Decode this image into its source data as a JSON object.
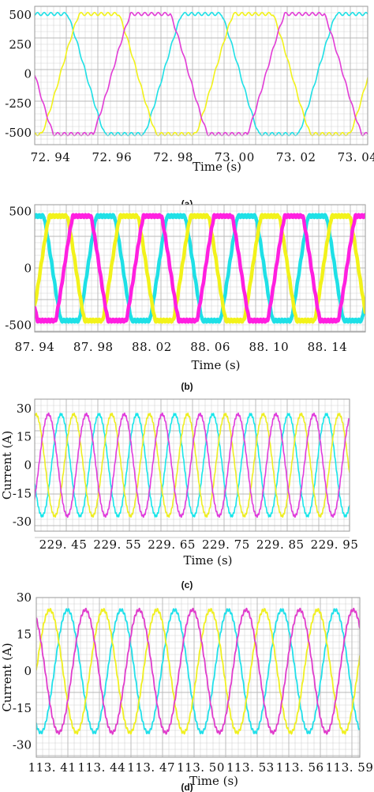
{
  "chart_data": [
    {
      "type": "line",
      "panel_label": "(a)",
      "xlabel": "Time (s)",
      "ylabel": "",
      "xlim": [
        72.934,
        73.042
      ],
      "ylim": [
        -600,
        575
      ],
      "yticks": [
        500,
        250,
        0,
        -250,
        -500
      ],
      "xtick_labels": [
        "72. 94",
        "72. 96",
        "72. 98",
        "73. 00",
        "73. 02",
        "73. 04"
      ],
      "waveform": "trapezoid",
      "frequency_hz": 20,
      "amplitude": 510,
      "series": [
        {
          "color": "#1ee0e6",
          "phase_deg": 60
        },
        {
          "color": "#f2f21a",
          "phase_deg": 300
        },
        {
          "color": "#e23cd6",
          "phase_deg": 180
        }
      ]
    },
    {
      "type": "line",
      "panel_label": "(b)",
      "xlabel": "Time (s)",
      "ylabel": "",
      "xlim": [
        87.932,
        88.166
      ],
      "ylim": [
        -560,
        560
      ],
      "yticks": [
        500,
        0,
        -500
      ],
      "xtick_labels": [
        "87. 94",
        "87. 98",
        "88. 02",
        "88. 06",
        "88. 10",
        "88. 14"
      ],
      "waveform": "trapezoid",
      "frequency_hz": 20,
      "amplitude": 460,
      "series": [
        {
          "color": "#1ee0e6",
          "phase_deg": 90
        },
        {
          "color": "#f2f21a",
          "phase_deg": 330
        },
        {
          "color": "#ff1fe0",
          "phase_deg": 210
        }
      ]
    },
    {
      "type": "line",
      "panel_label": "(c)",
      "xlabel": "Time (s)",
      "ylabel": "Current (A)",
      "xlim": [
        229.41,
        229.96
      ],
      "ylim": [
        -35,
        35
      ],
      "yticks": [
        30,
        15,
        0,
        -15,
        -30
      ],
      "xtick_labels": [
        "229. 45",
        "229. 55",
        "229. 65",
        "229. 75",
        "229. 85",
        "229. 95"
      ],
      "waveform": "sine",
      "frequency_hz": 15.1,
      "amplitude": 27,
      "series": [
        {
          "color": "#18e6ea",
          "phase_deg": 200
        },
        {
          "color": "#eeee22",
          "phase_deg": 80
        },
        {
          "color": "#e03cdc",
          "phase_deg": 320
        }
      ]
    },
    {
      "type": "line",
      "panel_label": "(d)",
      "xlabel": "Time (s)",
      "ylabel": "Current (A)",
      "xlim": [
        113.395,
        113.593
      ],
      "ylim": [
        -35,
        30
      ],
      "yticks": [
        30,
        15,
        0,
        -15,
        -30
      ],
      "xtick_labels": [
        "113. 41",
        "113. 44",
        "113. 47",
        "113. 50",
        "113. 53",
        "113. 56",
        "113. 59"
      ],
      "waveform": "sine",
      "frequency_hz": 30.5,
      "amplitude": 25,
      "series": [
        {
          "color": "#20e0ea",
          "phase_deg": 240
        },
        {
          "color": "#f0f020",
          "phase_deg": 0
        },
        {
          "color": "#e03ccc",
          "phase_deg": 120
        }
      ]
    }
  ]
}
